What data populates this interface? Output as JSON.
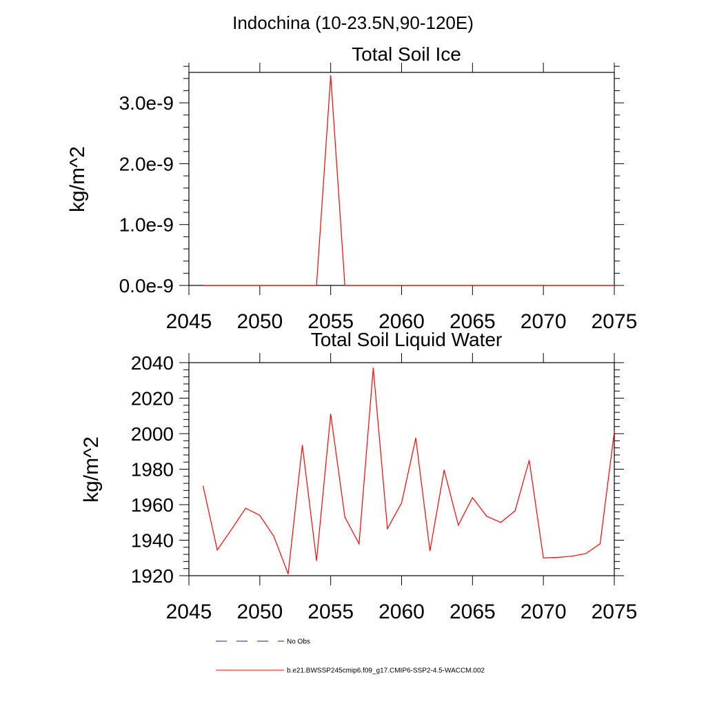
{
  "figure": {
    "suptitle": "Indochina (10-23.5N,90-120E)"
  },
  "legend": {
    "entries": [
      {
        "label": "No Obs",
        "color": "#1a1a6e",
        "dash": "dashed"
      },
      {
        "label": "b.e21.BWSSP245cmip6.f09_g17.CMIP6-SSP2-4.5-WACCM.002",
        "color": "#ff0000",
        "dash": "solid"
      }
    ]
  },
  "chart_data": [
    {
      "type": "line",
      "title": "Total Soil Ice",
      "xlabel": "",
      "ylabel": "kg/m^2",
      "xlim": [
        2045,
        2075
      ],
      "ylim": [
        0,
        3.5e-09
      ],
      "grid": false,
      "xticks": [
        2045,
        2050,
        2055,
        2060,
        2065,
        2070,
        2075
      ],
      "xtick_labels": [
        "2045",
        "2050",
        "2055",
        "2060",
        "2065",
        "2070",
        "2075"
      ],
      "yticks": [
        0,
        1e-09,
        2e-09,
        3e-09
      ],
      "ytick_labels": [
        "0.0e-9",
        "1.0e-9",
        "2.0e-9",
        "3.0e-9"
      ],
      "series": [
        {
          "color": "#ff0000",
          "x": [
            2046,
            2047,
            2048,
            2049,
            2050,
            2051,
            2052,
            2053,
            2054,
            2055,
            2056,
            2057,
            2058,
            2059,
            2060,
            2061,
            2062,
            2063,
            2064,
            2065,
            2066,
            2067,
            2068,
            2069,
            2070,
            2071,
            2072,
            2073,
            2074,
            2075
          ],
          "y": [
            0,
            0,
            0,
            0,
            0,
            0,
            0,
            0,
            0,
            3.45e-09,
            0,
            0,
            0,
            0,
            0,
            0,
            0,
            0,
            0,
            0,
            0,
            0,
            0,
            0,
            0,
            0,
            0,
            0,
            0,
            0
          ]
        }
      ]
    },
    {
      "type": "line",
      "title": "Total Soil Liquid Water",
      "xlabel": "",
      "ylabel": "kg/m^2",
      "xlim": [
        2045,
        2075
      ],
      "ylim": [
        1920,
        2040
      ],
      "grid": false,
      "xticks": [
        2045,
        2050,
        2055,
        2060,
        2065,
        2070,
        2075
      ],
      "xtick_labels": [
        "2045",
        "2050",
        "2055",
        "2060",
        "2065",
        "2070",
        "2075"
      ],
      "yticks": [
        1920,
        1940,
        1960,
        1980,
        2000,
        2020,
        2040
      ],
      "ytick_labels": [
        "1920",
        "1940",
        "1960",
        "1980",
        "2000",
        "2020",
        "2040"
      ],
      "series": [
        {
          "color": "#ff0000",
          "x": [
            2046,
            2047,
            2048,
            2049,
            2050,
            2051,
            2052,
            2053,
            2054,
            2055,
            2056,
            2057,
            2058,
            2059,
            2060,
            2061,
            2062,
            2063,
            2064,
            2065,
            2066,
            2067,
            2068,
            2069,
            2070,
            2071,
            2072,
            2073,
            2074,
            2075
          ],
          "y": [
            1970.5,
            1934.5,
            1946,
            1958,
            1954,
            1942,
            1921,
            1993.5,
            1928.5,
            2011,
            1953,
            1938,
            2037,
            1946.5,
            1961,
            1997.5,
            1934,
            1979.5,
            1948.5,
            1964,
            1953.5,
            1950,
            1956.5,
            1985,
            1930,
            1930.3,
            1931,
            1932.5,
            1938,
            2001
          ]
        }
      ]
    }
  ]
}
